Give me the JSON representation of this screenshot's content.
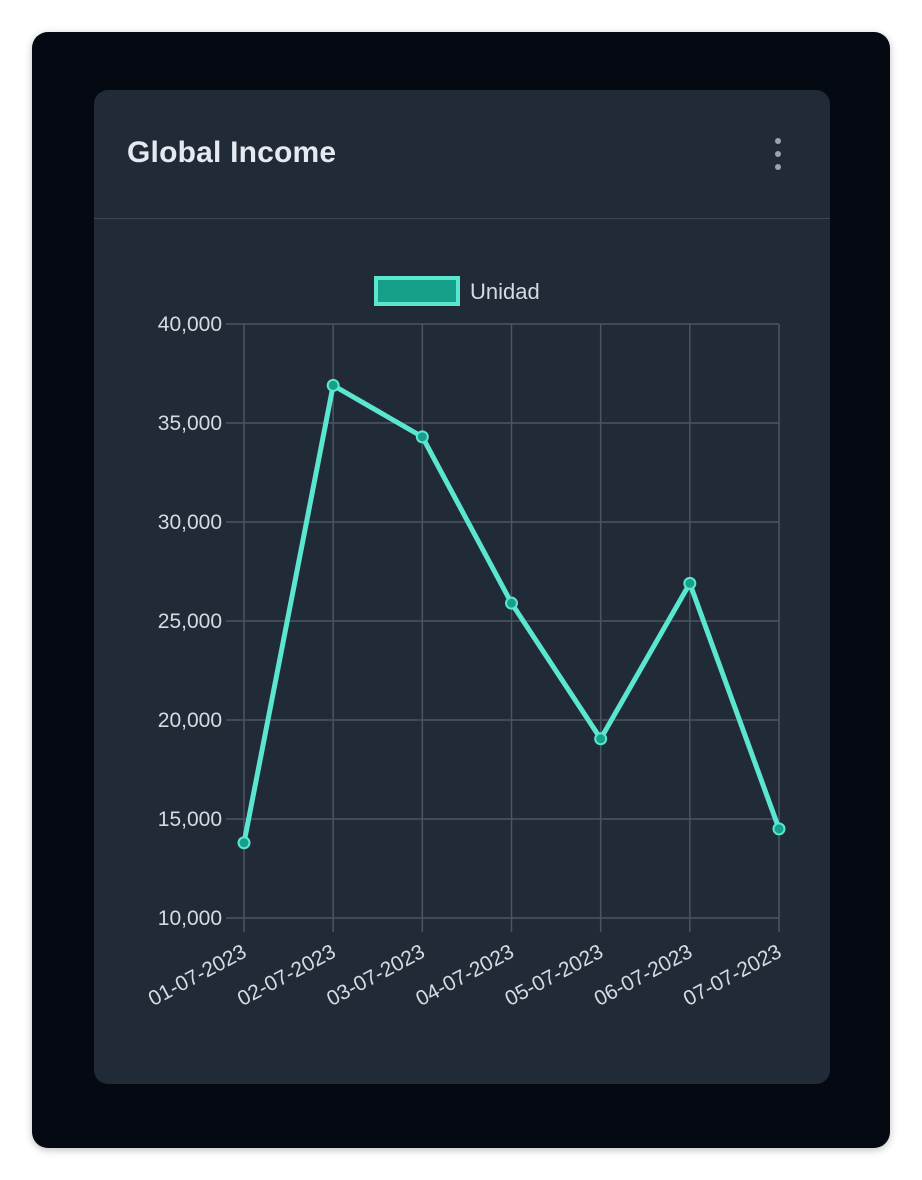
{
  "card": {
    "title": "Global Income",
    "menu_icon": "more-vertical-icon"
  },
  "colors": {
    "background": "#050a12",
    "card": "#212b38",
    "line": "#5ae6cf",
    "legend_fill": "#16a08c",
    "point_fill": "#16a08c",
    "grid": "#4a5463",
    "text": "#d6dbe3"
  },
  "chart_data": {
    "type": "line",
    "categories": [
      "01-07-2023",
      "02-07-2023",
      "03-07-2023",
      "04-07-2023",
      "05-07-2023",
      "06-07-2023",
      "07-07-2023"
    ],
    "series": [
      {
        "name": "Unidad",
        "values": [
          13800,
          36900,
          34300,
          25900,
          19050,
          26900,
          14500
        ]
      }
    ],
    "y_ticks": [
      "10,000",
      "15,000",
      "20,000",
      "25,000",
      "30,000",
      "35,000",
      "40,000"
    ],
    "ylim": [
      10000,
      40000
    ],
    "grid": true,
    "legend_position": "top-center"
  }
}
